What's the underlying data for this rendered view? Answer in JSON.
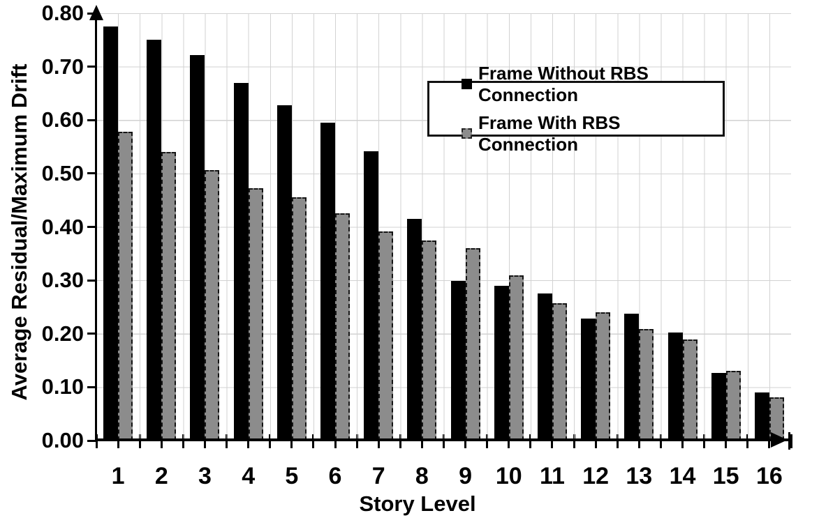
{
  "chart_data": {
    "type": "bar",
    "title": "",
    "xlabel": "Story Level",
    "ylabel": "Average Residual/Maximum Drift",
    "categories": [
      "1",
      "2",
      "3",
      "4",
      "5",
      "6",
      "7",
      "8",
      "9",
      "10",
      "11",
      "12",
      "13",
      "14",
      "15",
      "16"
    ],
    "series": [
      {
        "name": "Frame Without RBS Connection",
        "color": "#000000",
        "outline": "solid",
        "values": [
          0.775,
          0.75,
          0.722,
          0.67,
          0.628,
          0.595,
          0.542,
          0.415,
          0.299,
          0.29,
          0.275,
          0.229,
          0.238,
          0.202,
          0.127,
          0.09
        ]
      },
      {
        "name": "Frame With RBS Connection",
        "color": "#8c8c8c",
        "outline": "dashed",
        "values": [
          0.578,
          0.54,
          0.507,
          0.472,
          0.455,
          0.426,
          0.392,
          0.374,
          0.36,
          0.31,
          0.257,
          0.24,
          0.209,
          0.189,
          0.13,
          0.081
        ]
      }
    ],
    "ylim": [
      0.0,
      0.8
    ],
    "ytick_step": 0.1,
    "yticks": [
      "0.00",
      "0.10",
      "0.20",
      "0.30",
      "0.40",
      "0.50",
      "0.60",
      "0.70",
      "0.80"
    ],
    "grid": true,
    "gridline_color": "#d2d2d2",
    "legend_position": "top-right"
  }
}
